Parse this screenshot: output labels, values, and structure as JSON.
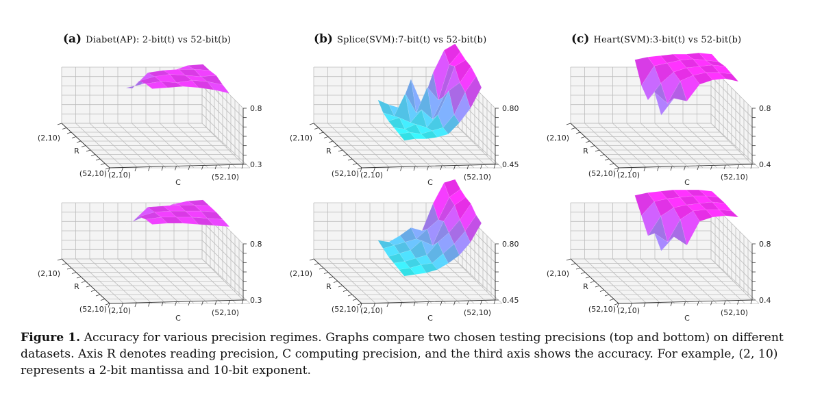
{
  "panels": [
    {
      "letter": "(a)",
      "title": "Diabet(AP): 2-bit(t) vs 52-bit(b)"
    },
    {
      "letter": "(b)",
      "title": "Splice(SVM):7-bit(t) vs 52-bit(b)"
    },
    {
      "letter": "(c)",
      "title": "Heart(SVM):3-bit(t) vs 52-bit(b)"
    }
  ],
  "caption": {
    "label": "Figure 1.",
    "text": "Accuracy for various precision regimes. Graphs compare two chosen testing precisions (top and bottom) on different datasets. Axis R denotes reading precision, C computing precision, and the third axis shows the accuracy. For example, (2, 10) represents a 2-bit mantissa and 10-bit exponent."
  },
  "colors": {
    "low": "#33ffff",
    "high": "#ff33ff",
    "grid": "#bcbcbc",
    "pane": "#f4f4f4"
  },
  "chart_data": [
    {
      "type": "surface",
      "panel": "(a)",
      "row": "top",
      "xlabel": "C",
      "ylabel": "R",
      "zlabel": "",
      "x_ticks": [
        "(2,10)",
        "(52,10)"
      ],
      "y_ticks": [
        "(2,10)",
        "(52,10)"
      ],
      "z_ticks": [
        "0.3",
        "0.8"
      ],
      "zlim": [
        0.3,
        0.8
      ],
      "z": [
        [
          0.55,
          0.58,
          0.62,
          0.7,
          0.75,
          0.76
        ],
        [
          0.6,
          0.74,
          0.76,
          0.77,
          0.77,
          0.76
        ],
        [
          0.72,
          0.76,
          0.78,
          0.77,
          0.76,
          0.77
        ],
        [
          0.75,
          0.77,
          0.76,
          0.78,
          0.77,
          0.74
        ],
        [
          0.76,
          0.77,
          0.78,
          0.77,
          0.75,
          0.72
        ]
      ]
    },
    {
      "type": "surface",
      "panel": "(a)",
      "row": "bottom",
      "xlabel": "C",
      "ylabel": "R",
      "zlabel": "",
      "x_ticks": [
        "(2,10)",
        "(52,10)"
      ],
      "y_ticks": [
        "(2,10)",
        "(52,10)"
      ],
      "z_ticks": [
        "0.3",
        "0.8"
      ],
      "zlim": [
        0.3,
        0.8
      ],
      "z": [
        [
          0.54,
          0.6,
          0.66,
          0.72,
          0.75,
          0.76
        ],
        [
          0.62,
          0.75,
          0.76,
          0.77,
          0.77,
          0.76
        ],
        [
          0.72,
          0.76,
          0.77,
          0.77,
          0.77,
          0.76
        ],
        [
          0.75,
          0.77,
          0.77,
          0.77,
          0.76,
          0.75
        ],
        [
          0.76,
          0.77,
          0.77,
          0.76,
          0.75,
          0.74
        ]
      ]
    },
    {
      "type": "surface",
      "panel": "(b)",
      "row": "top",
      "xlabel": "C",
      "ylabel": "R",
      "zlabel": "",
      "x_ticks": [
        "(2,10)",
        "(52,10)"
      ],
      "y_ticks": [
        "(2,10)",
        "(52,10)"
      ],
      "z_ticks": [
        "0.45",
        "0.80"
      ],
      "zlim": [
        0.45,
        0.8
      ],
      "z": [
        [
          0.55,
          0.52,
          0.5,
          0.68,
          0.52,
          0.72,
          0.86,
          0.9
        ],
        [
          0.5,
          0.48,
          0.62,
          0.5,
          0.66,
          0.58,
          0.8,
          0.88
        ],
        [
          0.48,
          0.5,
          0.47,
          0.55,
          0.49,
          0.63,
          0.82,
          0.86
        ],
        [
          0.47,
          0.46,
          0.49,
          0.47,
          0.55,
          0.7,
          0.75,
          0.85
        ],
        [
          0.46,
          0.47,
          0.46,
          0.48,
          0.5,
          0.58,
          0.72,
          0.82
        ],
        [
          0.45,
          0.46,
          0.46,
          0.47,
          0.49,
          0.56,
          0.65,
          0.78
        ]
      ]
    },
    {
      "type": "surface",
      "panel": "(b)",
      "row": "bottom",
      "xlabel": "C",
      "ylabel": "R",
      "zlabel": "",
      "x_ticks": [
        "(2,10)",
        "(52,10)"
      ],
      "y_ticks": [
        "(2,10)",
        "(52,10)"
      ],
      "z_ticks": [
        "0.45",
        "0.80"
      ],
      "zlim": [
        0.45,
        0.8
      ],
      "z": [
        [
          0.52,
          0.51,
          0.55,
          0.6,
          0.58,
          0.75,
          0.88,
          0.9
        ],
        [
          0.5,
          0.52,
          0.54,
          0.56,
          0.62,
          0.68,
          0.82,
          0.87
        ],
        [
          0.48,
          0.5,
          0.52,
          0.58,
          0.55,
          0.7,
          0.8,
          0.85
        ],
        [
          0.47,
          0.48,
          0.5,
          0.52,
          0.6,
          0.66,
          0.74,
          0.84
        ],
        [
          0.46,
          0.47,
          0.49,
          0.5,
          0.56,
          0.62,
          0.7,
          0.8
        ],
        [
          0.45,
          0.46,
          0.47,
          0.49,
          0.53,
          0.58,
          0.66,
          0.78
        ]
      ]
    },
    {
      "type": "surface",
      "panel": "(c)",
      "row": "top",
      "xlabel": "C",
      "ylabel": "R",
      "zlabel": "",
      "x_ticks": [
        "(2,10)",
        "(52,10)"
      ],
      "y_ticks": [
        "(2,10)",
        "(52,10)"
      ],
      "z_ticks": [
        "0.4",
        "0.8"
      ],
      "zlim": [
        0.4,
        0.8
      ],
      "z": [
        [
          0.8,
          0.82,
          0.83,
          0.84,
          0.84,
          0.85,
          0.84
        ],
        [
          0.66,
          0.8,
          0.82,
          0.84,
          0.85,
          0.84,
          0.83
        ],
        [
          0.6,
          0.72,
          0.8,
          0.83,
          0.84,
          0.85,
          0.84
        ],
        [
          0.7,
          0.62,
          0.78,
          0.82,
          0.84,
          0.84,
          0.83
        ],
        [
          0.58,
          0.7,
          0.68,
          0.8,
          0.83,
          0.84,
          0.82
        ]
      ]
    },
    {
      "type": "surface",
      "panel": "(c)",
      "row": "bottom",
      "xlabel": "C",
      "ylabel": "R",
      "zlabel": "",
      "x_ticks": [
        "(2,10)",
        "(52,10)"
      ],
      "y_ticks": [
        "(2,10)",
        "(52,10)"
      ],
      "z_ticks": [
        "0.4",
        "0.8"
      ],
      "zlim": [
        0.4,
        0.8
      ],
      "z": [
        [
          0.8,
          0.82,
          0.83,
          0.84,
          0.84,
          0.84,
          0.83
        ],
        [
          0.7,
          0.8,
          0.82,
          0.83,
          0.84,
          0.84,
          0.83
        ],
        [
          0.6,
          0.74,
          0.8,
          0.82,
          0.83,
          0.84,
          0.83
        ],
        [
          0.66,
          0.6,
          0.76,
          0.82,
          0.83,
          0.83,
          0.82
        ],
        [
          0.58,
          0.68,
          0.62,
          0.79,
          0.82,
          0.83,
          0.82
        ]
      ]
    }
  ]
}
